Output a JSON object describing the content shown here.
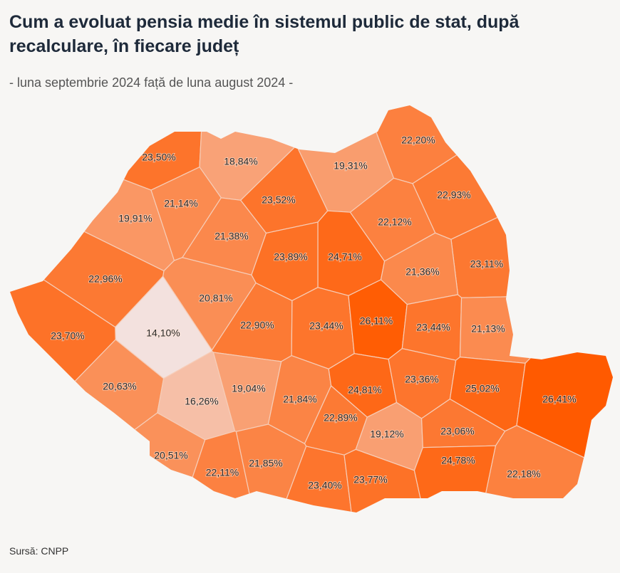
{
  "header": {
    "title": "Cum a evoluat pensia medie în sistemul public de stat, după recalculare, în fiecare județ",
    "subtitle": "- luna septembrie 2024 față de luna august 2024 -"
  },
  "footer": {
    "source": "Sursă: CNPP"
  },
  "map": {
    "type": "choropleth",
    "colors": {
      "low": "#f3e1de",
      "high": "#ff5a00",
      "border": "#f6cdb8"
    },
    "value_range": [
      14.1,
      26.41
    ],
    "regions": [
      {
        "label": "23,50%",
        "value": 23.5
      },
      {
        "label": "18,84%",
        "value": 18.84
      },
      {
        "label": "19,31%",
        "value": 19.31
      },
      {
        "label": "22,20%",
        "value": 22.2
      },
      {
        "label": "19,91%",
        "value": 19.91
      },
      {
        "label": "21,14%",
        "value": 21.14
      },
      {
        "label": "21,38%",
        "value": 21.38
      },
      {
        "label": "23,52%",
        "value": 23.52
      },
      {
        "label": "24,71%",
        "value": 24.71
      },
      {
        "label": "22,93%",
        "value": 22.93
      },
      {
        "label": "22,12%",
        "value": 22.12
      },
      {
        "label": "23,11%",
        "value": 23.11
      },
      {
        "label": "21,36%",
        "value": 21.36
      },
      {
        "label": "23,89%",
        "value": 23.89
      },
      {
        "label": "22,96%",
        "value": 22.96
      },
      {
        "label": "14,10%",
        "value": 14.1
      },
      {
        "label": "20,81%",
        "value": 20.81
      },
      {
        "label": "23,70%",
        "value": 23.7
      },
      {
        "label": "22,90%",
        "value": 22.9
      },
      {
        "label": "23,44%",
        "value": 23.44
      },
      {
        "label": "26,11%",
        "value": 26.11
      },
      {
        "label": "23,44%",
        "value": 23.44
      },
      {
        "label": "21,13%",
        "value": 21.13
      },
      {
        "label": "20,63%",
        "value": 20.63
      },
      {
        "label": "16,26%",
        "value": 16.26
      },
      {
        "label": "19,04%",
        "value": 19.04
      },
      {
        "label": "21,84%",
        "value": 21.84
      },
      {
        "label": "24,81%",
        "value": 24.81
      },
      {
        "label": "23,36%",
        "value": 23.36
      },
      {
        "label": "25,02%",
        "value": 25.02
      },
      {
        "label": "26,41%",
        "value": 26.41
      },
      {
        "label": "22,89%",
        "value": 22.89
      },
      {
        "label": "19,12%",
        "value": 19.12
      },
      {
        "label": "23,06%",
        "value": 23.06
      },
      {
        "label": "20,51%",
        "value": 20.51
      },
      {
        "label": "22,11%",
        "value": 22.11
      },
      {
        "label": "21,85%",
        "value": 21.85
      },
      {
        "label": "23,40%",
        "value": 23.4
      },
      {
        "label": "23,77%",
        "value": 23.77
      },
      {
        "label": "24,78%",
        "value": 24.78
      },
      {
        "label": "22,18%",
        "value": 22.18
      }
    ]
  }
}
